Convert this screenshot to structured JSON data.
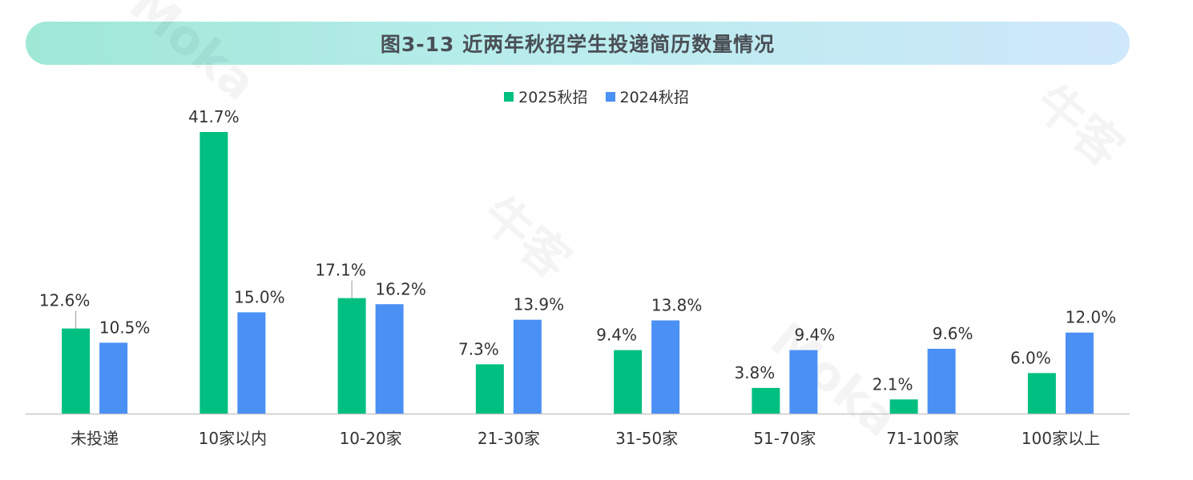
{
  "title": "图3-13   近两年秋招学生投递简历数量情况",
  "watermarks": [
    "Moka",
    "牛客",
    "Moka",
    "牛客"
  ],
  "chart_data": {
    "type": "bar",
    "categories": [
      "未投递",
      "10家以内",
      "10-20家",
      "21-30家",
      "31-50家",
      "51-70家",
      "71-100家",
      "100家以上"
    ],
    "series": [
      {
        "name": "2025秋招",
        "color": "#00bf80",
        "values": [
          12.6,
          41.7,
          17.1,
          7.3,
          9.4,
          3.8,
          2.1,
          6.0
        ],
        "labels": [
          "12.6%",
          "41.7%",
          "17.1%",
          "7.3%",
          "9.4%",
          "3.8%",
          "2.1%",
          "6.0%"
        ]
      },
      {
        "name": "2024秋招",
        "color": "#4a90f5",
        "values": [
          10.5,
          15.0,
          16.2,
          13.9,
          13.8,
          9.4,
          9.6,
          12.0
        ],
        "labels": [
          "10.5%",
          "15.0%",
          "16.2%",
          "13.9%",
          "13.8%",
          "9.4%",
          "9.6%",
          "12.0%"
        ]
      }
    ],
    "ylim": [
      0,
      45
    ],
    "legend_position": "top-center",
    "grid": false
  }
}
